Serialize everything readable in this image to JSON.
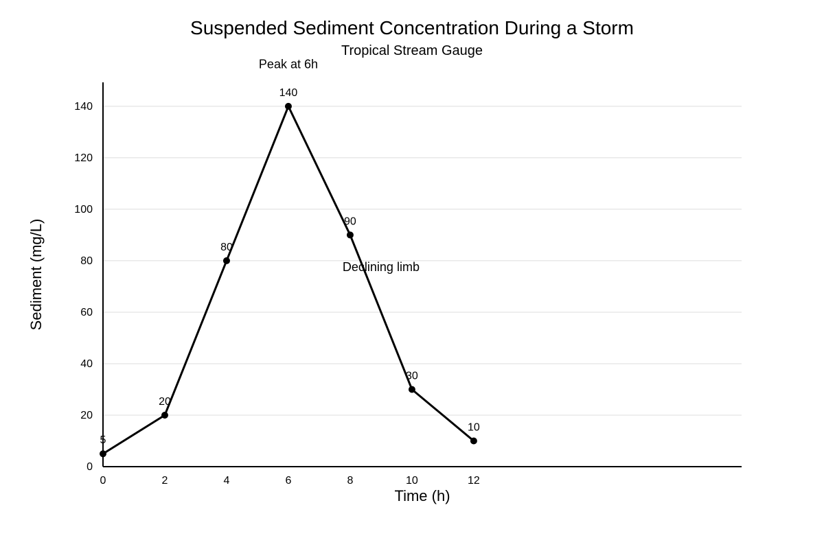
{
  "chart_data": {
    "type": "line",
    "title": "Suspended Sediment Concentration During a Storm",
    "subtitle": "Tropical Stream Gauge",
    "xlabel": "Time (h)",
    "ylabel": "Sediment (mg/L)",
    "x": [
      0,
      2,
      4,
      6,
      8,
      10,
      12
    ],
    "series": [
      {
        "values": [
          5,
          20,
          80,
          140,
          90,
          30,
          10
        ]
      }
    ],
    "data_labels": [
      "5",
      "20",
      "80",
      "140",
      "90",
      "30",
      "10"
    ],
    "x_ticks": [
      0,
      2,
      4,
      6,
      8,
      10,
      12
    ],
    "y_ticks": [
      0,
      20,
      40,
      60,
      80,
      100,
      120,
      140
    ],
    "xlim": [
      0,
      20.67
    ],
    "ylim": [
      0,
      149.3
    ],
    "grid": "horizontal",
    "legend": "none",
    "annotations": [
      {
        "text": "Peak at 6h",
        "x": 6,
        "y": 154.7
      },
      {
        "text": "Declining limb",
        "x": 9,
        "y": 76
      }
    ],
    "colors": {
      "line": "#000000",
      "grid": "#dcdcdc",
      "axis": "#000000"
    }
  }
}
